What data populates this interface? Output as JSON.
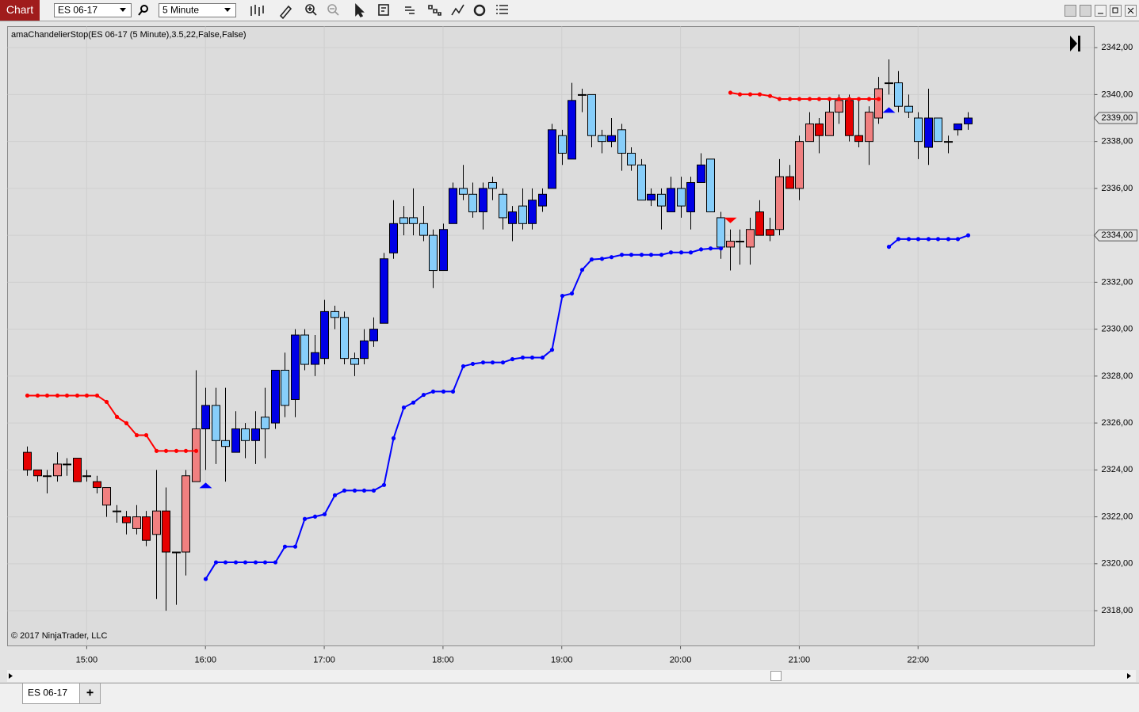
{
  "toolbar": {
    "title": "Chart",
    "instrument": "ES 06-17",
    "interval": "5 Minute"
  },
  "tabs": {
    "items": [
      "ES 06-17"
    ],
    "add": "+"
  },
  "chart_data": {
    "type": "candlestick",
    "title": "amaChandelierStop(ES 06-17 (5 Minute),3.5,22,False,False)",
    "footnote": "© 2017 NinjaTrader, LLC",
    "x": [
      "14:30",
      "14:35",
      "14:40",
      "14:45",
      "14:50",
      "14:55",
      "15:00",
      "15:05",
      "15:10",
      "15:15",
      "15:20",
      "15:25",
      "15:30",
      "15:35",
      "15:40",
      "15:45",
      "15:50",
      "15:55",
      "16:00",
      "16:05",
      "16:10",
      "16:15",
      "16:20",
      "16:25",
      "16:30",
      "16:35",
      "16:40",
      "16:45",
      "16:50",
      "16:55",
      "17:00",
      "17:05",
      "17:10",
      "17:15",
      "17:20",
      "17:25",
      "17:30",
      "17:35",
      "17:40",
      "17:45",
      "17:50",
      "17:55",
      "18:00",
      "18:05",
      "18:10",
      "18:15",
      "18:20",
      "18:25",
      "18:30",
      "18:35",
      "18:40",
      "18:45",
      "18:50",
      "18:55",
      "19:00",
      "19:05",
      "19:10",
      "19:15",
      "19:20",
      "19:25",
      "19:30",
      "19:35",
      "19:40",
      "19:45",
      "19:50",
      "19:55",
      "20:00",
      "20:05",
      "20:10",
      "20:15",
      "20:20",
      "20:25",
      "20:30",
      "20:35",
      "20:40",
      "20:45",
      "20:50",
      "20:55",
      "21:00",
      "21:05",
      "21:10",
      "21:15",
      "21:20",
      "21:25",
      "21:30",
      "21:35",
      "21:40",
      "21:45",
      "21:50",
      "21:55",
      "22:00",
      "22:05",
      "22:10",
      "22:15",
      "22:20",
      "22:25"
    ],
    "open": [
      2324.75,
      2324,
      2323.75,
      2323.75,
      2324.25,
      2324.5,
      2323.75,
      2323.5,
      2322.5,
      2322.25,
      2322,
      2321.5,
      2322,
      2321.25,
      2322.25,
      2320.5,
      2320.5,
      2323.5,
      2325.75,
      2326.75,
      2325.25,
      2324.75,
      2325.75,
      2325.25,
      2326.25,
      2326,
      2328.25,
      2327,
      2329.75,
      2328.5,
      2328.75,
      2330.75,
      2330.5,
      2328.75,
      2328.75,
      2329.5,
      2330.25,
      2333.25,
      2334.75,
      2334.75,
      2334.5,
      2334,
      2332.5,
      2334.5,
      2336,
      2335.75,
      2335,
      2336.25,
      2335.75,
      2334.5,
      2335.25,
      2334.5,
      2335.25,
      2336,
      2338.25,
      2337.25,
      2340,
      2340,
      2338.25,
      2338,
      2338.5,
      2337.5,
      2337,
      2335.5,
      2335.75,
      2335,
      2336,
      2335,
      2336.25,
      2337.25,
      2334.75,
      2333.5,
      2333.75,
      2333.5,
      2335,
      2334.25,
      2334.25,
      2336.5,
      2336,
      2338,
      2338.75,
      2338.25,
      2339.25,
      2339.75,
      2338.25,
      2338,
      2339,
      2340.5,
      2340.5,
      2339.5,
      2339,
      2337.75,
      2339,
      2338,
      2338.5,
      2338.75
    ],
    "high": [
      2325,
      2324,
      2324,
      2324.75,
      2324.5,
      2324.5,
      2324,
      2323.75,
      2323.25,
      2322.5,
      2322.25,
      2322.5,
      2322.25,
      2324,
      2323.25,
      2320.5,
      2324,
      2328.25,
      2327.5,
      2327.5,
      2327.5,
      2326.5,
      2326,
      2326.5,
      2327.5,
      2328.25,
      2329,
      2330,
      2330,
      2329.75,
      2331.25,
      2331,
      2330.75,
      2329,
      2330,
      2330.5,
      2333.25,
      2335.5,
      2335.25,
      2336,
      2335.25,
      2334.25,
      2334.5,
      2336.25,
      2337,
      2336.25,
      2336.25,
      2336.5,
      2336,
      2335.25,
      2336,
      2336,
      2336,
      2338.75,
      2338.5,
      2340.5,
      2340.25,
      2340,
      2338.5,
      2339,
      2338.75,
      2337.75,
      2337.25,
      2336,
      2336,
      2336.5,
      2336.5,
      2336.5,
      2337.5,
      2337.25,
      2335,
      2334.25,
      2334.25,
      2334.75,
      2335.5,
      2334.75,
      2337.25,
      2337,
      2338.25,
      2339.25,
      2339,
      2339.75,
      2340,
      2340,
      2339.75,
      2339.5,
      2340.75,
      2341.5,
      2341,
      2340,
      2339.25,
      2340.25,
      2339,
      2338.25,
      2338.75,
      2339.25
    ],
    "low": [
      2323.75,
      2323.5,
      2323,
      2323.5,
      2323.75,
      2323.5,
      2323.5,
      2323,
      2322,
      2321.75,
      2321.25,
      2321.25,
      2320.75,
      2318.5,
      2318,
      2318.25,
      2319.5,
      2323.5,
      2324,
      2324.25,
      2323.5,
      2324.75,
      2324.5,
      2324.25,
      2324.5,
      2325.75,
      2326.25,
      2326.25,
      2328.25,
      2328,
      2328.5,
      2330,
      2328.5,
      2328,
      2328.5,
      2329.25,
      2330.25,
      2333,
      2334,
      2334,
      2333.75,
      2331.75,
      2332.5,
      2334.5,
      2335.5,
      2334.75,
      2334.25,
      2335.5,
      2334.25,
      2333.75,
      2334.25,
      2334.25,
      2335,
      2336,
      2337,
      2337.25,
      2339.25,
      2337.75,
      2337.5,
      2337.75,
      2336.75,
      2336.75,
      2335.5,
      2335.25,
      2334.25,
      2335,
      2334.75,
      2334.25,
      2336.25,
      2335,
      2333,
      2332.5,
      2332.75,
      2332.75,
      2334,
      2333.75,
      2334,
      2336,
      2335.5,
      2338,
      2337.5,
      2338.25,
      2338.75,
      2338,
      2337.75,
      2337,
      2338.75,
      2340,
      2339.25,
      2339,
      2337.25,
      2337,
      2338,
      2337.5,
      2338.25,
      2338.5
    ],
    "close": [
      2324,
      2323.75,
      2323.75,
      2324.25,
      2324.25,
      2323.5,
      2323.75,
      2323.25,
      2323.25,
      2322.25,
      2321.75,
      2322,
      2321,
      2322.25,
      2320.5,
      2320.5,
      2323.75,
      2325.75,
      2326.75,
      2325.25,
      2325,
      2325.75,
      2325.25,
      2325.75,
      2325.75,
      2328.25,
      2326.75,
      2329.75,
      2328.5,
      2329,
      2330.75,
      2330.5,
      2328.75,
      2328.5,
      2329.5,
      2330,
      2333,
      2334.5,
      2334.5,
      2334.5,
      2334,
      2332.5,
      2334.25,
      2336,
      2335.75,
      2335,
      2336,
      2336,
      2334.75,
      2335,
      2334.5,
      2335.5,
      2335.75,
      2338.5,
      2337.5,
      2339.75,
      2340,
      2338.25,
      2338,
      2338.25,
      2337.5,
      2337,
      2335.5,
      2335.75,
      2335.25,
      2336,
      2335.25,
      2336.25,
      2337,
      2335,
      2333.5,
      2333.75,
      2333.75,
      2334.25,
      2334,
      2334,
      2336.5,
      2336,
      2338,
      2338.75,
      2338.25,
      2339.25,
      2339.75,
      2338.25,
      2338,
      2339.25,
      2340.25,
      2340.5,
      2339.5,
      2339.25,
      2338,
      2339,
      2338,
      2338,
      2338.75,
      2339
    ],
    "candle_colors": {
      "up_trend_rising": "#0000e6",
      "up_trend_falling": "#87cefa",
      "down_trend_falling": "#e60000",
      "down_trend_rising": "#f08080"
    },
    "lines": [
      {
        "color": "#ff0000",
        "trend": "down",
        "values": [
          2327.17,
          2327.17,
          2327.17,
          2327.17,
          2327.17,
          2327.17,
          2327.17,
          2327.17,
          2326.9,
          2326.26,
          2325.99,
          2325.48,
          2325.48,
          2324.81,
          2324.81,
          2324.81,
          2324.81,
          2324.81,
          null,
          null,
          null,
          null,
          null,
          null,
          null,
          null,
          null,
          null,
          null,
          null,
          null,
          null,
          null,
          null,
          null,
          null,
          null,
          null,
          null,
          null,
          null,
          null,
          null,
          null,
          null,
          null,
          null,
          null,
          null,
          null,
          null,
          null,
          null,
          null,
          null,
          null,
          null,
          null,
          null,
          null,
          null,
          null,
          null,
          null,
          null,
          null,
          null,
          null,
          null,
          null,
          null,
          2340.08,
          2340.01,
          2340.01,
          2340.01,
          2339.94,
          2339.81,
          2339.81,
          2339.81,
          2339.81,
          2339.81,
          2339.81,
          2339.81,
          2339.81,
          2339.81,
          2339.81,
          2339.81,
          null,
          null,
          null,
          null,
          null,
          null,
          null,
          null,
          null
        ]
      },
      {
        "color": "#0000ff",
        "trend": "up",
        "values": [
          null,
          null,
          null,
          null,
          null,
          null,
          null,
          null,
          null,
          null,
          null,
          null,
          null,
          null,
          null,
          null,
          null,
          null,
          2319.35,
          2320.06,
          2320.06,
          2320.06,
          2320.06,
          2320.06,
          2320.06,
          2320.06,
          2320.73,
          2320.73,
          2321.91,
          2322.01,
          2322.11,
          2322.92,
          2323.12,
          2323.12,
          2323.12,
          2323.12,
          2323.36,
          2325.35,
          2326.66,
          2326.87,
          2327.2,
          2327.34,
          2327.34,
          2327.34,
          2328.42,
          2328.52,
          2328.58,
          2328.58,
          2328.58,
          2328.72,
          2328.79,
          2328.79,
          2328.79,
          2329.12,
          2331.42,
          2331.52,
          2332.53,
          2332.97,
          2333.0,
          2333.07,
          2333.17,
          2333.17,
          2333.17,
          2333.17,
          2333.17,
          2333.27,
          2333.27,
          2333.27,
          2333.4,
          2333.44,
          2333.44,
          null,
          null,
          null,
          null,
          null,
          null,
          null,
          null,
          null,
          null,
          null,
          null,
          null,
          null,
          null,
          null,
          2333.51,
          2333.84,
          2333.84,
          2333.84,
          2333.84,
          2333.84,
          2333.84,
          2333.84,
          2334.0
        ]
      }
    ],
    "price_markers": [
      {
        "value": 2339,
        "label": "2339,00",
        "color": "#0000e6"
      },
      {
        "value": 2334,
        "label": "2334,00",
        "color": "#0000ff"
      }
    ],
    "xlim": [
      "14:20",
      "23:29"
    ],
    "xticks": [
      "15:00",
      "16:00",
      "17:00",
      "18:00",
      "19:00",
      "20:00",
      "21:00",
      "22:00"
    ],
    "ylim": [
      2316.5,
      2342.9
    ],
    "yticks": [
      {
        "value": 2318,
        "label": "2318,00"
      },
      {
        "value": 2320,
        "label": "2320,00"
      },
      {
        "value": 2322,
        "label": "2322,00"
      },
      {
        "value": 2324,
        "label": "2324,00"
      },
      {
        "value": 2326,
        "label": "2326,00"
      },
      {
        "value": 2328,
        "label": "2328,00"
      },
      {
        "value": 2330,
        "label": "2330,00"
      },
      {
        "value": 2332,
        "label": "2332,00"
      },
      {
        "value": 2334,
        "label": "2334,00"
      },
      {
        "value": 2336,
        "label": "2336,00"
      },
      {
        "value": 2338,
        "label": "2338,00"
      },
      {
        "value": 2340,
        "label": "2340,00"
      },
      {
        "value": 2342,
        "label": "2342,00"
      }
    ],
    "grid": true
  }
}
